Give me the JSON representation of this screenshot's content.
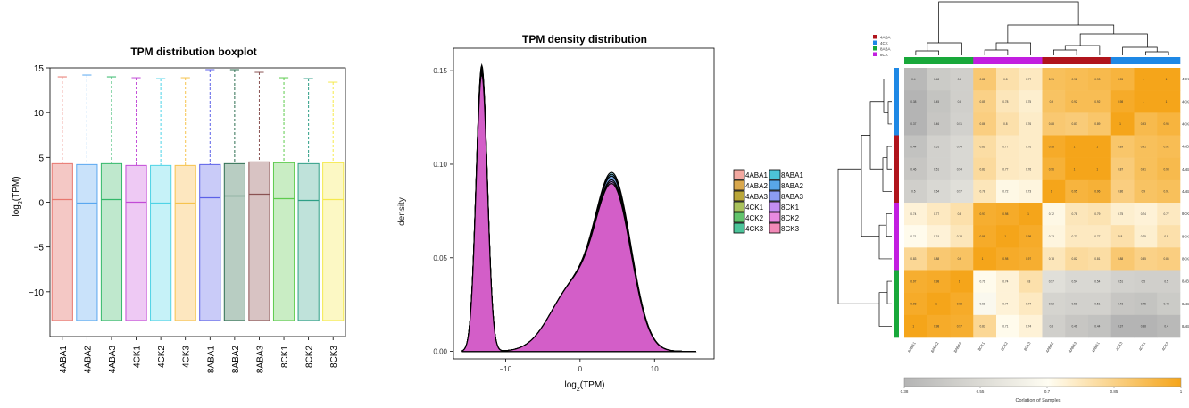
{
  "chart_data": [
    {
      "type": "box",
      "title": "TPM distribution boxplot",
      "ylabel": "log2(TPM)",
      "ylabel_base": "log",
      "ylabel_sub": "2",
      "ylabel_rest": "(TPM)",
      "ylim": [
        -15,
        15
      ],
      "yticks": [
        -10,
        -5,
        0,
        5,
        10,
        15
      ],
      "categories": [
        "4ABA1",
        "4ABA2",
        "4ABA3",
        "4CK1",
        "4CK2",
        "4CK3",
        "8ABA1",
        "8ABA2",
        "8ABA3",
        "8CK1",
        "8CK2",
        "8CK3"
      ],
      "boxes": [
        {
          "min": -13.2,
          "q1": -13.2,
          "median": 0.3,
          "q3": 4.3,
          "max": 14.0
        },
        {
          "min": -13.2,
          "q1": -13.2,
          "median": -0.1,
          "q3": 4.2,
          "max": 14.2
        },
        {
          "min": -13.2,
          "q1": -13.2,
          "median": 0.3,
          "q3": 4.3,
          "max": 14.0
        },
        {
          "min": -13.2,
          "q1": -13.2,
          "median": 0.0,
          "q3": 4.1,
          "max": 13.9
        },
        {
          "min": -13.2,
          "q1": -13.2,
          "median": -0.1,
          "q3": 4.1,
          "max": 13.8
        },
        {
          "min": -13.2,
          "q1": -13.2,
          "median": -0.1,
          "q3": 4.1,
          "max": 13.9
        },
        {
          "min": -13.2,
          "q1": -13.2,
          "median": 0.5,
          "q3": 4.2,
          "max": 14.8
        },
        {
          "min": -13.2,
          "q1": -13.2,
          "median": 0.7,
          "q3": 4.3,
          "max": 14.8
        },
        {
          "min": -13.2,
          "q1": -13.2,
          "median": 0.9,
          "q3": 4.5,
          "max": 14.5
        },
        {
          "min": -13.2,
          "q1": -13.2,
          "median": 0.4,
          "q3": 4.4,
          "max": 13.9
        },
        {
          "min": -13.2,
          "q1": -13.2,
          "median": 0.2,
          "q3": 4.3,
          "max": 13.8
        },
        {
          "min": -13.2,
          "q1": -13.2,
          "median": 0.3,
          "q3": 4.4,
          "max": 13.4
        }
      ],
      "colors": [
        "#e8776e",
        "#5aa8f0",
        "#33b86a",
        "#c24bd6",
        "#4fd3e6",
        "#f6c34e",
        "#5c61e8",
        "#2f6f52",
        "#8a5252",
        "#5ecb4e",
        "#2f9f86",
        "#f5e94c"
      ],
      "fills": [
        "#f4c8c5",
        "#c9e2fa",
        "#bfe8cd",
        "#eec9f4",
        "#c6f2f8",
        "#fde7bf",
        "#c9cbf8",
        "#b8cdc2",
        "#d8c3c3",
        "#c9edc4",
        "#bfe2da",
        "#fcf8c4"
      ]
    },
    {
      "type": "density",
      "title": "TPM density distribution",
      "xlabel": "log2(TPM)",
      "xlabel_base": "log",
      "xlabel_sub": "2",
      "xlabel_rest": "(TPM)",
      "ylabel": "density",
      "xlim": [
        -17,
        18
      ],
      "ylim": [
        -0.004,
        0.162
      ],
      "xticks": [
        -10,
        0,
        10
      ],
      "yticks": [
        0.0,
        0.05,
        0.1,
        0.15
      ],
      "ytick_labels": [
        "0.00",
        "0.05",
        "0.10",
        "0.15"
      ],
      "series_peaks": [
        {
          "name": "4ABA1",
          "mode1": 0.15,
          "mode2": 0.085
        },
        {
          "name": "4ABA2",
          "mode1": 0.152,
          "mode2": 0.084
        },
        {
          "name": "4ABA3",
          "mode1": 0.15,
          "mode2": 0.086
        },
        {
          "name": "4CK1",
          "mode1": 0.149,
          "mode2": 0.087
        },
        {
          "name": "4CK2",
          "mode1": 0.151,
          "mode2": 0.085
        },
        {
          "name": "4CK3",
          "mode1": 0.15,
          "mode2": 0.084
        },
        {
          "name": "8ABA1",
          "mode1": 0.153,
          "mode2": 0.089
        },
        {
          "name": "8ABA2",
          "mode1": 0.152,
          "mode2": 0.088
        },
        {
          "name": "8ABA3",
          "mode1": 0.151,
          "mode2": 0.087
        },
        {
          "name": "8CK1",
          "mode1": 0.15,
          "mode2": 0.085
        },
        {
          "name": "8CK2",
          "mode1": 0.149,
          "mode2": 0.084
        },
        {
          "name": "8CK3",
          "mode1": 0.148,
          "mode2": 0.083
        }
      ],
      "legend": [
        "4ABA1",
        "4ABA2",
        "4ABA3",
        "4CK1",
        "4CK2",
        "4CK3",
        "8ABA1",
        "8ABA2",
        "8ABA3",
        "8CK1",
        "8CK2",
        "8CK3"
      ],
      "legend_colors": [
        "#f2a8a0",
        "#d9a84e",
        "#b9a63a",
        "#a9c25c",
        "#62c46c",
        "#4cc49a",
        "#4cc4d6",
        "#58a6e8",
        "#8c9cf2",
        "#c48ef2",
        "#e88ae0",
        "#f28ab8"
      ]
    },
    {
      "type": "heatmap",
      "title": "",
      "legend_groups": [
        "4ABA",
        "4CK",
        "8ABA",
        "8CK"
      ],
      "legend_group_colors": [
        "#b0141c",
        "#1e88e5",
        "#18a83a",
        "#c21ee0"
      ],
      "col_labels": [
        "8ABA1",
        "8ABA2",
        "8ABA3",
        "8CK1",
        "8CK2",
        "8CK3",
        "4ABA2",
        "4ABA3",
        "4ABA1",
        "4CK3",
        "4CK1",
        "4CK2"
      ],
      "col_groups": [
        "8ABA",
        "8ABA",
        "8ABA",
        "8CK",
        "8CK",
        "8CK",
        "4ABA",
        "4ABA",
        "4ABA",
        "4CK",
        "4CK",
        "4CK"
      ],
      "row_labels": [
        "4CK3",
        "4CK1",
        "4CK2",
        "4ABA1",
        "4ABA2",
        "4ABA3",
        "8CK1",
        "8CK2",
        "8CK3",
        "8ABA1",
        "8ABA2",
        "8ABA3"
      ],
      "row_groups": [
        "4CK",
        "4CK",
        "4CK",
        "4ABA",
        "4ABA",
        "4ABA",
        "8CK",
        "8CK",
        "8CK",
        "8ABA",
        "8ABA",
        "8ABA"
      ],
      "values": [
        [
          0.4,
          0.48,
          0.5,
          0.88,
          0.8,
          0.77,
          0.91,
          0.92,
          0.93,
          0.95,
          1,
          1
        ],
        [
          0.38,
          0.45,
          0.5,
          0.85,
          0.78,
          0.75,
          0.9,
          0.92,
          0.92,
          0.98,
          1,
          1
        ],
        [
          0.37,
          0.46,
          0.51,
          0.86,
          0.8,
          0.76,
          0.88,
          0.87,
          0.89,
          1,
          0.93,
          0.95
        ],
        [
          0.44,
          0.51,
          0.54,
          0.81,
          0.77,
          0.76,
          0.98,
          1,
          1,
          0.89,
          0.91,
          0.92
        ],
        [
          0.46,
          0.51,
          0.54,
          0.82,
          0.77,
          0.76,
          0.96,
          1,
          1,
          0.87,
          0.91,
          0.93
        ],
        [
          0.5,
          0.54,
          0.57,
          0.78,
          0.72,
          0.73,
          1,
          0.95,
          0.96,
          0.86,
          0.9,
          0.91
        ],
        [
          0.74,
          0.77,
          0.8,
          0.97,
          0.98,
          1,
          0.72,
          0.78,
          0.79,
          0.75,
          0.74,
          0.77
        ],
        [
          0.71,
          0.74,
          0.78,
          0.98,
          1,
          0.98,
          0.73,
          0.77,
          0.77,
          0.8,
          0.75,
          0.8
        ],
        [
          0.83,
          0.88,
          0.9,
          1,
          0.98,
          0.97,
          0.78,
          0.82,
          0.81,
          0.88,
          0.85,
          0.86
        ],
        [
          0.97,
          0.98,
          1,
          0.71,
          0.74,
          0.8,
          0.57,
          0.54,
          0.54,
          0.51,
          0.5,
          0.5
        ],
        [
          0.98,
          1,
          0.98,
          0.68,
          0.74,
          0.77,
          0.52,
          0.51,
          0.51,
          0.46,
          0.45,
          0.48
        ],
        [
          1,
          0.98,
          0.97,
          0.83,
          0.71,
          0.74,
          0.5,
          0.46,
          0.44,
          0.37,
          0.38,
          0.4
        ]
      ],
      "color_range": [
        0.38,
        1
      ],
      "colorbar_ticks": [
        0.38,
        0.55,
        0.7,
        0.85,
        1
      ],
      "colorbar_tick_labels": [
        "0.38",
        "0.55",
        "0.7",
        "0.85",
        "1"
      ],
      "colorbar_label": "Corlation of Samples",
      "colors": {
        "low": "#b4b4b4",
        "mid": "#fffdf2",
        "high": "#f5a51a"
      }
    }
  ]
}
